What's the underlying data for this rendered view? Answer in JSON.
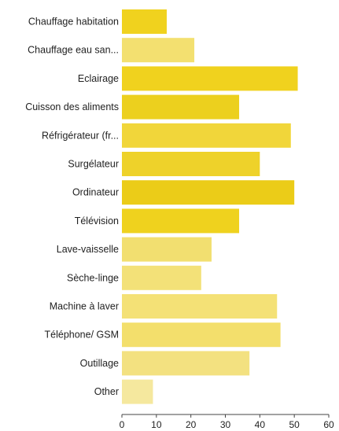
{
  "chart_data": {
    "type": "bar",
    "orientation": "horizontal",
    "categories": [
      "Chauffage habitation",
      "Chauffage eau san...",
      "Eclairage",
      "Cuisson des aliments",
      "Réfrigérateur (fr...",
      "Surgélateur",
      "Ordinateur",
      "Télévision",
      "Lave-vaisselle",
      "Sèche-linge",
      "Machine à laver",
      "Téléphone/ GSM",
      "Outillage",
      "Other"
    ],
    "values": [
      13,
      21,
      51,
      34,
      49,
      40,
      50,
      34,
      26,
      23,
      45,
      46,
      37,
      9
    ],
    "bar_colors": [
      "#f0d21e",
      "#f3e070",
      "#f0d21e",
      "#ecd01e",
      "#f1d63a",
      "#eed22a",
      "#ebcc18",
      "#efd21e",
      "#f2df70",
      "#f3e178",
      "#f4e176",
      "#f3df6c",
      "#f3e180",
      "#f5e89e"
    ],
    "xlim": [
      0,
      60
    ],
    "xticks": [
      "0",
      "10",
      "20",
      "30",
      "40",
      "50",
      "60"
    ],
    "grid": false,
    "title": "",
    "xlabel": "",
    "ylabel": ""
  }
}
